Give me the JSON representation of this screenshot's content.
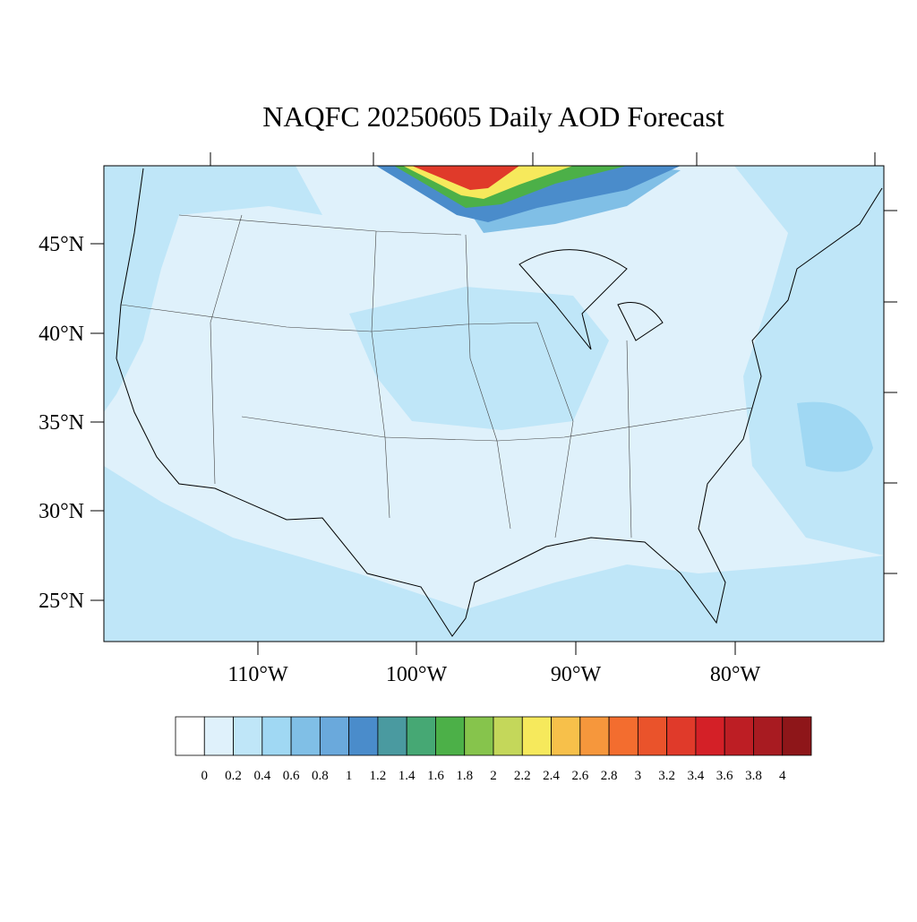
{
  "title": "NAQFC 20250605 Daily AOD Forecast",
  "lat_labels": [
    "45°N",
    "40°N",
    "35°N",
    "30°N",
    "25°N"
  ],
  "lon_labels": [
    "110°W",
    "100°W",
    "90°W",
    "80°W"
  ],
  "colorbar": {
    "levels": [
      0,
      0.2,
      0.4,
      0.6,
      0.8,
      1,
      1.2,
      1.4,
      1.6,
      1.8,
      2,
      2.2,
      2.4,
      2.6,
      2.8,
      3,
      3.2,
      3.4,
      3.6,
      3.8,
      4
    ],
    "colors": [
      "#ffffff",
      "#dff1fb",
      "#bfe6f8",
      "#a0d8f3",
      "#80bfe6",
      "#6aa9dc",
      "#4a8ccb",
      "#4a9aa0",
      "#46a874",
      "#4cb048",
      "#86c44c",
      "#c4d75a",
      "#f6e95c",
      "#f7c04a",
      "#f6973c",
      "#f36d2f",
      "#ea532b",
      "#e03a2a",
      "#d42027",
      "#bd1e24",
      "#a81b21",
      "#8e1619"
    ]
  }
}
